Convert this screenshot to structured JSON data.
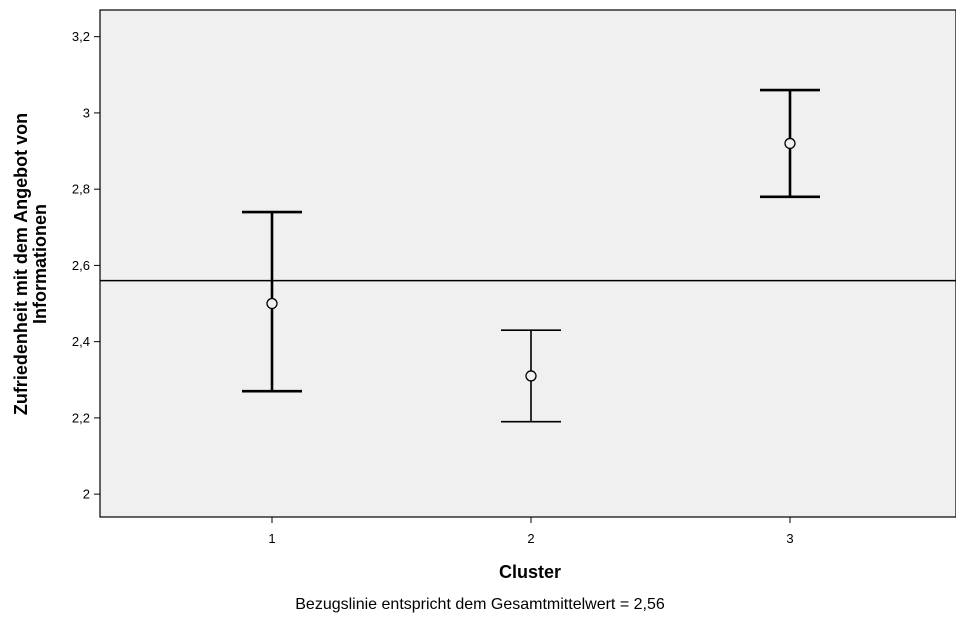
{
  "chart_data": {
    "type": "errorbar",
    "xlabel": "Cluster",
    "ylabel_lines": [
      "Zufriedenheit mit dem Angebot von",
      "Informationen"
    ],
    "categories": [
      "1",
      "2",
      "3"
    ],
    "y_ticks": [
      "2",
      "2,2",
      "2,4",
      "2,6",
      "2,8",
      "3",
      "3,2"
    ],
    "y_tick_values": [
      2.0,
      2.2,
      2.4,
      2.6,
      2.8,
      3.0,
      3.2
    ],
    "ylim": [
      1.94,
      3.27
    ],
    "grid": false,
    "series": [
      {
        "points": [
          {
            "x": "1",
            "mean": 2.5,
            "lower": 2.27,
            "upper": 2.74
          },
          {
            "x": "2",
            "mean": 2.31,
            "lower": 2.19,
            "upper": 2.43
          },
          {
            "x": "3",
            "mean": 2.92,
            "lower": 2.78,
            "upper": 3.06
          }
        ]
      }
    ],
    "reference_line": {
      "value": 2.56
    },
    "footnote": "Bezugslinie entspricht dem Gesamtmittelwert = 2,56",
    "colors": {
      "plot_background": "#f0f0f0",
      "marks": "#000000"
    }
  }
}
